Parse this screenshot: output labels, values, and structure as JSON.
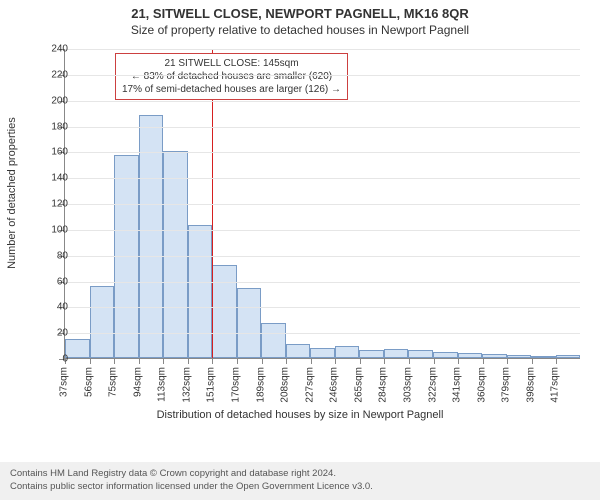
{
  "title_main": "21, SITWELL CLOSE, NEWPORT PAGNELL, MK16 8QR",
  "title_sub": "Size of property relative to detached houses in Newport Pagnell",
  "chart": {
    "type": "histogram",
    "ylabel": "Number of detached properties",
    "xlabel": "Distribution of detached houses by size in Newport Pagnell",
    "ylim": [
      0,
      240
    ],
    "ytick_step": 20,
    "background_color": "#ffffff",
    "grid_color": "#e6e6e6",
    "axis_color": "#888888",
    "bar_fill": "#d4e3f4",
    "bar_border": "#7a9cc6",
    "marker_color": "#d62020",
    "x_labels": [
      "37sqm",
      "56sqm",
      "75sqm",
      "94sqm",
      "113sqm",
      "132sqm",
      "151sqm",
      "170sqm",
      "189sqm",
      "208sqm",
      "227sqm",
      "246sqm",
      "265sqm",
      "284sqm",
      "303sqm",
      "322sqm",
      "341sqm",
      "360sqm",
      "379sqm",
      "398sqm",
      "417sqm"
    ],
    "values": [
      15,
      56,
      157,
      188,
      160,
      103,
      72,
      54,
      27,
      11,
      8,
      9,
      6,
      7,
      6,
      5,
      4,
      3,
      2,
      1,
      2
    ],
    "marker_value_sqm": 145,
    "x_domain": [
      37,
      417
    ],
    "annotation": {
      "line1": "21 SITWELL CLOSE: 145sqm",
      "line2": "← 83% of detached houses are smaller (620)",
      "line3": "17% of semi-detached houses are larger (126) →"
    },
    "annotation_border": "#cc4040",
    "tick_fontsize": 10,
    "label_fontsize": 11,
    "title_fontsize_main": 13,
    "title_fontsize_sub": 12
  },
  "footer": {
    "line1": "Contains HM Land Registry data © Crown copyright and database right 2024.",
    "line2": "Contains public sector information licensed under the Open Government Licence v3.0."
  }
}
